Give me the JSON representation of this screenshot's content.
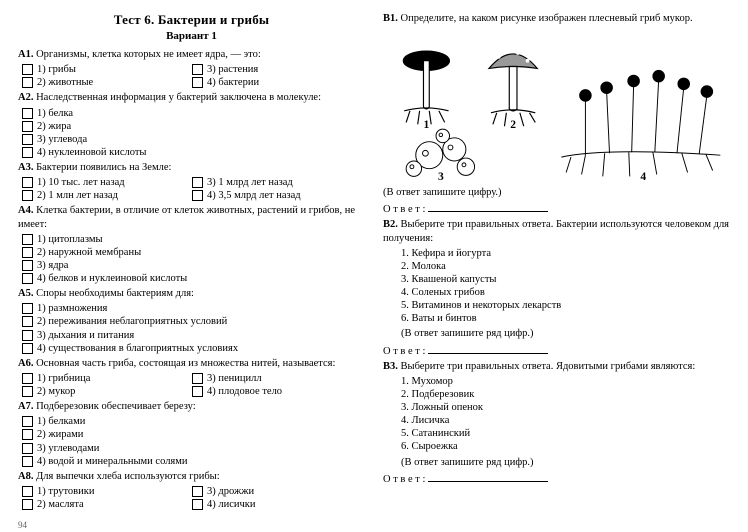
{
  "page_number": "94",
  "left": {
    "title": "Тест 6. Бактерии и грибы",
    "variant": "Вариант 1",
    "questions": [
      {
        "label": "А1.",
        "text": "Организмы, клетка которых не имеет ядра, — это:",
        "cols": 2,
        "options": [
          "1) грибы",
          "3) растения",
          "2) животные",
          "4) бактерии"
        ]
      },
      {
        "label": "А2.",
        "text": "Наследственная информация у бактерий заключена в молекуле:",
        "cols": 1,
        "options": [
          "1) белка",
          "2) жира",
          "3) углевода",
          "4) нуклеиновой кислоты"
        ]
      },
      {
        "label": "А3.",
        "text": "Бактерии появились на Земле:",
        "cols": 2,
        "options": [
          "1) 10 тыс. лет назад",
          "3) 1 млрд лет назад",
          "2) 1 млн лет назад",
          "4) 3,5 млрд лет назад"
        ]
      },
      {
        "label": "А4.",
        "text": "Клетка бактерии, в отличие от клеток животных, растений и грибов, не имеет:",
        "cols": 1,
        "options": [
          "1) цитоплазмы",
          "2) наружной мембраны",
          "3) ядра",
          "4) белков и нуклеиновой кислоты"
        ]
      },
      {
        "label": "А5.",
        "text": "Споры необходимы бактериям для:",
        "cols": 1,
        "options": [
          "1) размножения",
          "2) переживания неблагоприятных условий",
          "3) дыхания и питания",
          "4) существования в благоприятных условиях"
        ]
      },
      {
        "label": "А6.",
        "text": "Основная часть гриба, состоящая из множества нитей, называется:",
        "cols": 2,
        "options": [
          "1) грибница",
          "3) пеницилл",
          "2) мукор",
          "4) плодовое тело"
        ]
      },
      {
        "label": "А7.",
        "text": "Подберезовик обеспечивает березу:",
        "cols": 1,
        "options": [
          "1) белками",
          "2) жирами",
          "3) углеводами",
          "4) водой и минеральными солями"
        ]
      },
      {
        "label": "А8.",
        "text": "Для выпечки хлеба используются грибы:",
        "cols": 2,
        "options": [
          "1) трутовики",
          "3) дрожжи",
          "2) маслята",
          "4) лисички"
        ]
      }
    ]
  },
  "right": {
    "b1": {
      "label": "В1.",
      "text": "Определите, на каком рисунке изображен плесневый гриб мукор.",
      "note": "(В ответ запишите цифру.)",
      "answer_label": "О т в е т :",
      "fig_labels": [
        "1",
        "2",
        "3",
        "4"
      ]
    },
    "b2": {
      "label": "В2.",
      "text": "Выберите три правильных ответа. Бактерии используются человеком для получения:",
      "items": [
        "1. Кефира и йогурта",
        "2. Молока",
        "3. Квашеной капусты",
        "4. Соленых грибов",
        "5. Витаминов и некоторых лекарств",
        "6. Ваты и бинтов"
      ],
      "note": "(В ответ запишите ряд цифр.)",
      "answer_label": "О т в е т :"
    },
    "b3": {
      "label": "В3.",
      "text": "Выберите три правильных ответа. Ядовитыми грибами являются:",
      "items": [
        "1. Мухомор",
        "2. Подберезовик",
        "3. Ложный опенок",
        "4. Лисичка",
        "5. Сатанинский",
        "6. Сыроежка"
      ],
      "note": "(В ответ запишите ряд цифр.)",
      "answer_label": "О т в е т :"
    }
  }
}
